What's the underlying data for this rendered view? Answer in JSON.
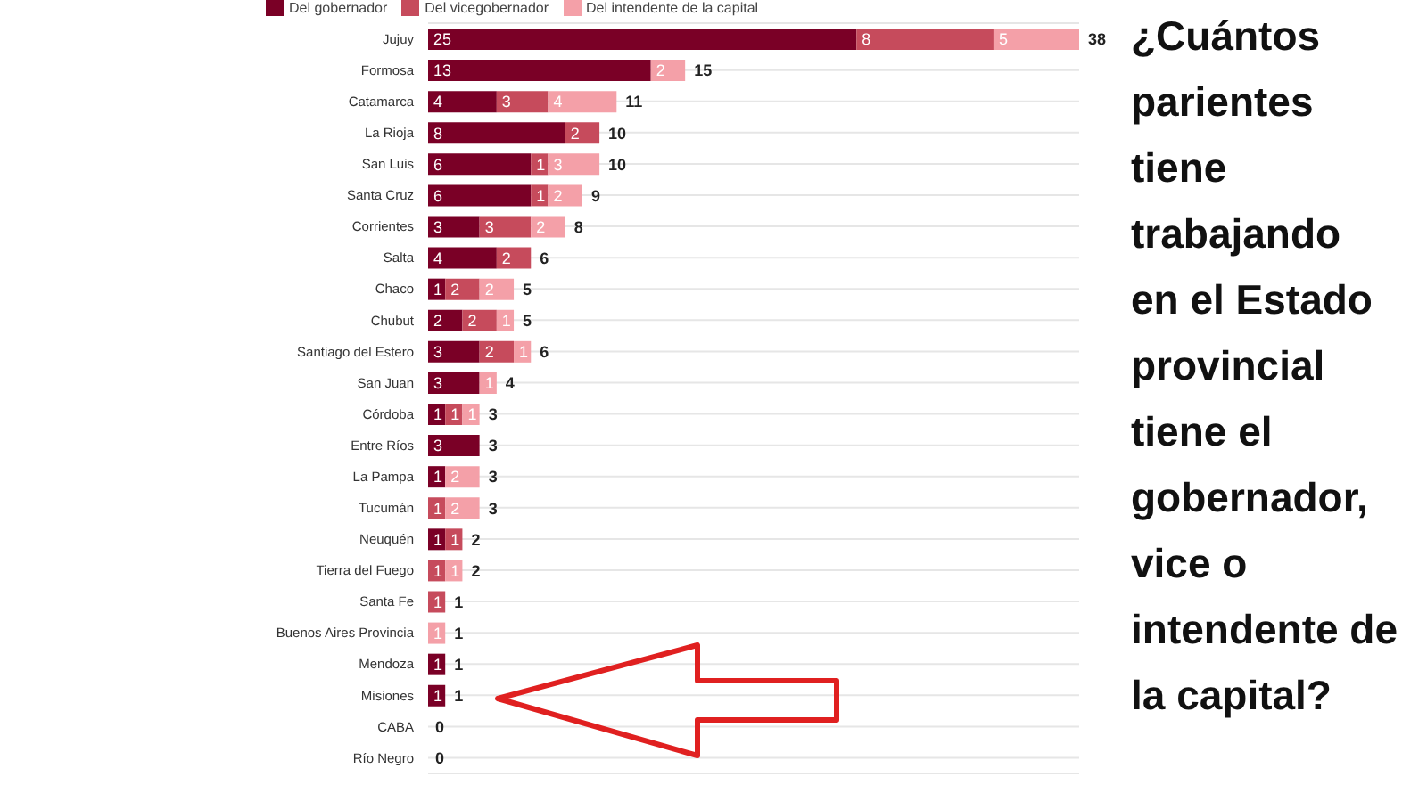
{
  "chart_data": {
    "type": "bar",
    "orientation": "horizontal",
    "stacked": true,
    "title": "¿Cuántos parientes tiene trabajando en el Estado provincial tiene el gobernador, vice o intendente de la capital?",
    "categories": [
      "Jujuy",
      "Formosa",
      "Catamarca",
      "La Rioja",
      "San Luis",
      "Santa Cruz",
      "Corrientes",
      "Salta",
      "Chaco",
      "Chubut",
      "Santiago del Estero",
      "San Juan",
      "Córdoba",
      "Entre Ríos",
      "La Pampa",
      "Tucumán",
      "Neuquén",
      "Tierra del Fuego",
      "Santa Fe",
      "Buenos Aires Provincia",
      "Mendoza",
      "Misiones",
      "CABA",
      "Río Negro"
    ],
    "series": [
      {
        "name": "Del gobernador",
        "color": "#7a0026",
        "values": [
          25,
          13,
          4,
          8,
          6,
          6,
          3,
          4,
          1,
          2,
          3,
          3,
          1,
          3,
          1,
          null,
          1,
          null,
          null,
          null,
          1,
          1,
          null,
          null
        ]
      },
      {
        "name": "Del vicegobernador",
        "color": "#c64b5c",
        "values": [
          8,
          null,
          3,
          2,
          1,
          1,
          3,
          2,
          2,
          2,
          2,
          null,
          1,
          null,
          null,
          1,
          1,
          1,
          1,
          null,
          null,
          null,
          null,
          null
        ]
      },
      {
        "name": "Del intendente de la capital",
        "color": "#f4a0a8",
        "values": [
          5,
          2,
          4,
          null,
          3,
          2,
          2,
          null,
          2,
          1,
          1,
          1,
          1,
          null,
          2,
          2,
          null,
          1,
          null,
          1,
          null,
          null,
          null,
          null
        ]
      }
    ],
    "totals": [
      "38",
      "15",
      "11",
      "10",
      "10",
      "9",
      "8",
      "6",
      "5",
      "5",
      "6",
      "4",
      "3",
      "3",
      "3",
      "3",
      "2",
      "2",
      "1",
      "1",
      "1",
      "1",
      "0",
      "0"
    ],
    "data_labels": true,
    "grid": "y",
    "legend": "top left"
  }
}
